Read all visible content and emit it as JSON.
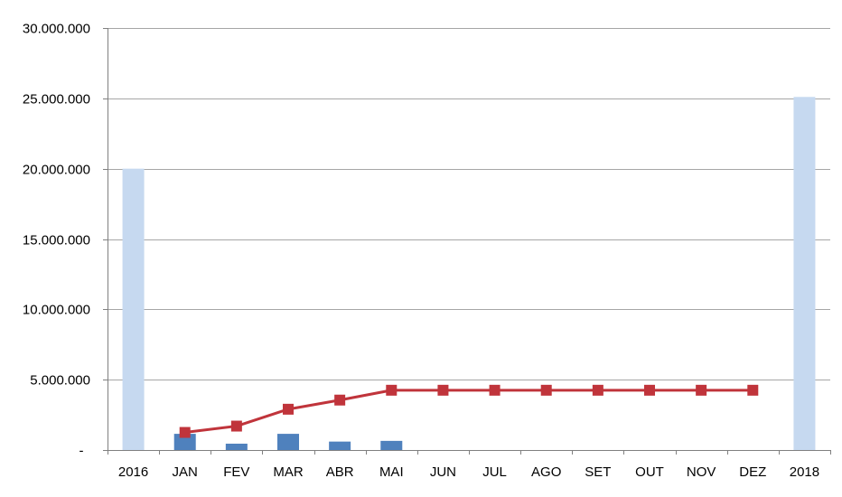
{
  "chart_data": {
    "type": "bar",
    "categories": [
      "2016",
      "JAN",
      "FEV",
      "MAR",
      "ABR",
      "MAI",
      "JUN",
      "JUL",
      "AGO",
      "SET",
      "OUT",
      "NOV",
      "DEZ",
      "2018"
    ],
    "ylim": [
      0,
      30000000
    ],
    "y_ticks": [
      {
        "value": 0,
        "label": "-"
      },
      {
        "value": 5000000,
        "label": "5.000.000"
      },
      {
        "value": 10000000,
        "label": "10.000.000"
      },
      {
        "value": 15000000,
        "label": "15.000.000"
      },
      {
        "value": 20000000,
        "label": "20.000.000"
      },
      {
        "value": 25000000,
        "label": "25.000.000"
      },
      {
        "value": 30000000,
        "label": "30.000.000"
      }
    ],
    "grid": true,
    "legend": "none",
    "series": [
      {
        "kind": "bar",
        "color": "#c6d9f0",
        "values": [
          20000000,
          null,
          null,
          null,
          null,
          null,
          null,
          null,
          null,
          null,
          null,
          null,
          null,
          25100000
        ]
      },
      {
        "kind": "bar",
        "color": "#4f81bd",
        "values": [
          null,
          1150000,
          450000,
          1150000,
          600000,
          650000,
          null,
          null,
          null,
          null,
          null,
          null,
          null,
          null
        ]
      },
      {
        "kind": "line",
        "color": "#c0343b",
        "marker": "square",
        "values": [
          null,
          1250000,
          1700000,
          2900000,
          3550000,
          4250000,
          4250000,
          4250000,
          4250000,
          4250000,
          4250000,
          4250000,
          4250000,
          null
        ]
      }
    ]
  }
}
